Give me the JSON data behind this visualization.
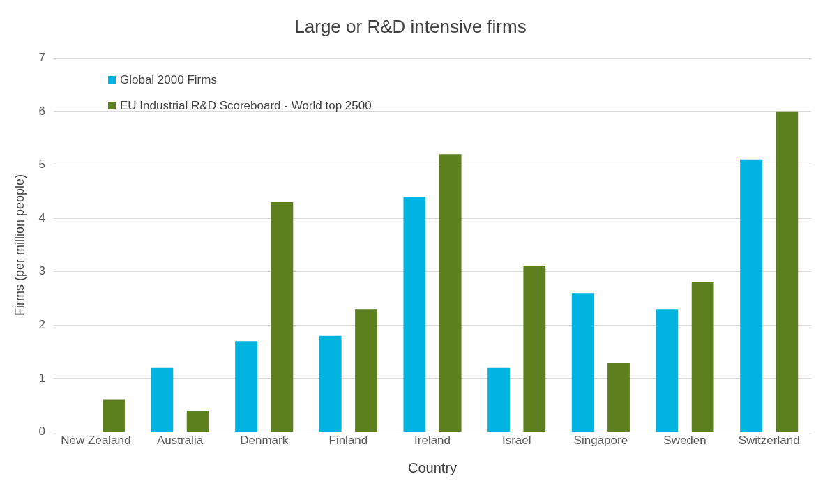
{
  "chart_data": {
    "type": "bar",
    "title": "Large or R&D intensive firms",
    "xlabel": "Country",
    "ylabel": "Firms (per million people)",
    "categories": [
      "New Zealand",
      "Australia",
      "Denmark",
      "Finland",
      "Ireland",
      "Israel",
      "Singapore",
      "Sweden",
      "Switzerland"
    ],
    "series": [
      {
        "name": "Global 2000 Firms",
        "color": "#00b3e0",
        "values": [
          0,
          1.2,
          1.7,
          1.8,
          4.4,
          1.2,
          2.6,
          2.3,
          5.1
        ]
      },
      {
        "name": "EU Industrial R&D Scoreboard - World top 2500",
        "color": "#5e7f1e",
        "values": [
          0.6,
          0.4,
          4.3,
          2.3,
          5.2,
          3.1,
          1.3,
          2.8,
          6.0
        ]
      }
    ],
    "ylim": [
      0,
      7
    ],
    "yticks": [
      0,
      1,
      2,
      3,
      4,
      5,
      6,
      7
    ],
    "grid": "y",
    "legend": "top left"
  }
}
